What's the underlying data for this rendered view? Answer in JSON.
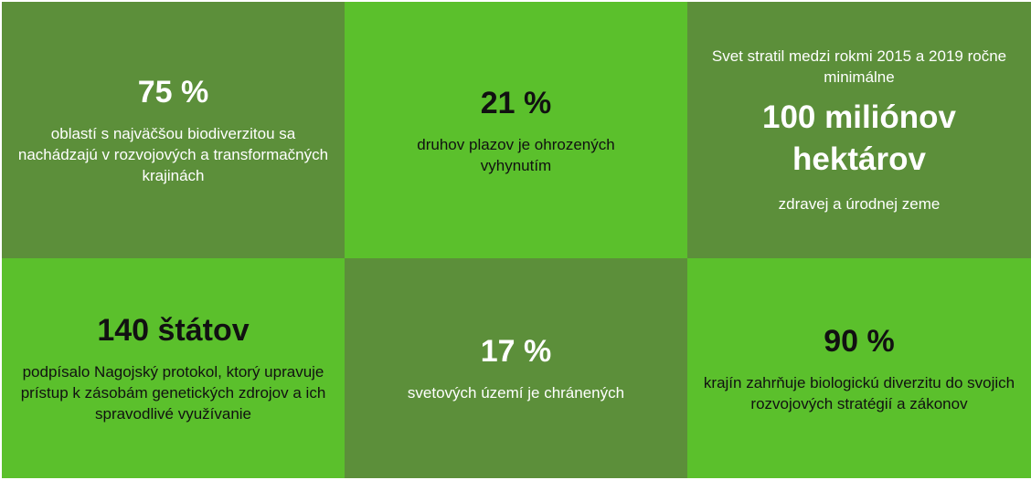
{
  "tiles": [
    {
      "value": "75 %",
      "text": "oblastí s najväčšou biodiverzitou sa nachádzajú v rozvojových a transformačných krajinách"
    },
    {
      "value": "21 %",
      "text": "druhov plazov je ohrozených vyhynutím"
    },
    {
      "intro": "Svet stratil medzi rokmi 2015 a 2019 ročne minimálne",
      "value": "100 miliónov hektárov",
      "text": "zdravej a úrodnej zeme"
    },
    {
      "value": "140 štátov",
      "text": "podpísalo Nagojský protokol, ktorý upravuje prístup k zásobám genetických zdrojov a ich spravodlivé využívanie"
    },
    {
      "value": "17 %",
      "text": "svetových území je chránených"
    },
    {
      "value": "90 %",
      "text": "krajín zahrňuje biologickú diverzitu do svojich rozvojových stratégií a zákonov"
    }
  ]
}
